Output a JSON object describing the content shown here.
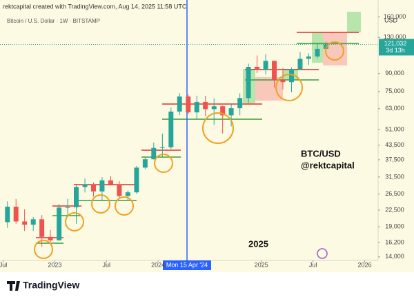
{
  "header": "rektcapital created with TradingView.com, Aug 14, 2025 11:58 UTC",
  "footer_logo": "TradingView",
  "chart_data": {
    "type": "candlestick",
    "title": "Bitcoin / U.S. Dollar · 1W · BITSTAMP",
    "currency": "USD",
    "annotations": [
      "BTC/USD",
      "@rektcapital",
      "2025"
    ],
    "crosshair_label": "Mon 15 Apr '24",
    "log_scale": true,
    "grid": false,
    "up_color": "#26a69a",
    "down_color": "#ef5350",
    "xlim": [
      2022.47,
      2026.13
    ],
    "xticks": [
      {
        "value": 2022.5,
        "label": "Jul"
      },
      2023,
      {
        "value": 2023.5,
        "label": "Jul"
      },
      2024,
      2025,
      {
        "value": 2025.5,
        "label": "Jul"
      },
      2026
    ],
    "ylim": [
      13500,
      190000
    ],
    "yticks": [
      {
        "value": 14000,
        "label": "14,000"
      },
      {
        "value": 16200,
        "label": "16,200"
      },
      {
        "value": 19000,
        "label": "19,000"
      },
      {
        "value": 22500,
        "label": "22,500"
      },
      {
        "value": 26500,
        "label": "26,500"
      },
      {
        "value": 31500,
        "label": "31,500"
      },
      {
        "value": 37500,
        "label": "37,500"
      },
      {
        "value": 43500,
        "label": "43,500"
      },
      {
        "value": 51000,
        "label": "51,000"
      },
      {
        "value": 63000,
        "label": "63,000"
      },
      {
        "value": 75000,
        "label": "75,000"
      },
      {
        "value": 90000,
        "label": "90,000"
      },
      {
        "value": 130000,
        "label": "130,000"
      },
      {
        "value": 160000,
        "label": "160,000"
      }
    ],
    "last_price": {
      "value": 121032,
      "label": "121,032"
    },
    "countdown": "3d 13h",
    "x": [
      2022.542,
      2022.625,
      2022.708,
      2022.792,
      2022.875,
      2022.958,
      2023.042,
      2023.125,
      2023.208,
      2023.292,
      2023.375,
      2023.458,
      2023.542,
      2023.625,
      2023.708,
      2023.792,
      2023.875,
      2023.958,
      2024.042,
      2024.125,
      2024.208,
      2024.292,
      2024.375,
      2024.458,
      2024.542,
      2024.625,
      2024.708,
      2024.792,
      2024.875,
      2024.958,
      2025.042,
      2025.125,
      2025.208,
      2025.292,
      2025.375,
      2025.458,
      2025.542,
      2025.625
    ],
    "open": [
      19900,
      23300,
      20050,
      19400,
      20500,
      17150,
      16550,
      23100,
      23150,
      28450,
      29250,
      27200,
      30450,
      29250,
      25950,
      26950,
      34650,
      37700,
      42300,
      42600,
      61200,
      71300,
      60700,
      67500,
      62700,
      64600,
      58900,
      63300,
      70200,
      96400,
      93400,
      102400,
      84300,
      82500,
      94200,
      104600,
      107100,
      115700
    ],
    "high": [
      24600,
      25200,
      22700,
      21000,
      21400,
      18400,
      23900,
      25200,
      29200,
      31000,
      29800,
      31400,
      31800,
      30200,
      27500,
      35200,
      38400,
      44700,
      48900,
      63900,
      73800,
      72800,
      71900,
      71900,
      70000,
      65000,
      66500,
      73600,
      99600,
      108300,
      109600,
      102500,
      95000,
      95700,
      111900,
      110500,
      123200,
      124400
    ],
    "low": [
      18800,
      19600,
      18200,
      18200,
      15500,
      16300,
      16500,
      21400,
      19600,
      26900,
      25800,
      24800,
      28900,
      25200,
      24900,
      26550,
      34100,
      37600,
      38500,
      41900,
      59000,
      59600,
      56500,
      58400,
      53500,
      49000,
      52600,
      58900,
      66800,
      90500,
      89200,
      78200,
      76600,
      74400,
      93400,
      98200,
      105200,
      112000
    ],
    "close": [
      23300,
      20050,
      19400,
      20500,
      17150,
      16550,
      23100,
      23150,
      28450,
      29250,
      27200,
      30450,
      29250,
      25950,
      26950,
      34650,
      37700,
      42300,
      42600,
      61200,
      71300,
      60700,
      67500,
      62700,
      64600,
      58900,
      63300,
      70200,
      96400,
      93400,
      102400,
      84300,
      82500,
      94200,
      104600,
      107100,
      115700,
      121032
    ]
  }
}
